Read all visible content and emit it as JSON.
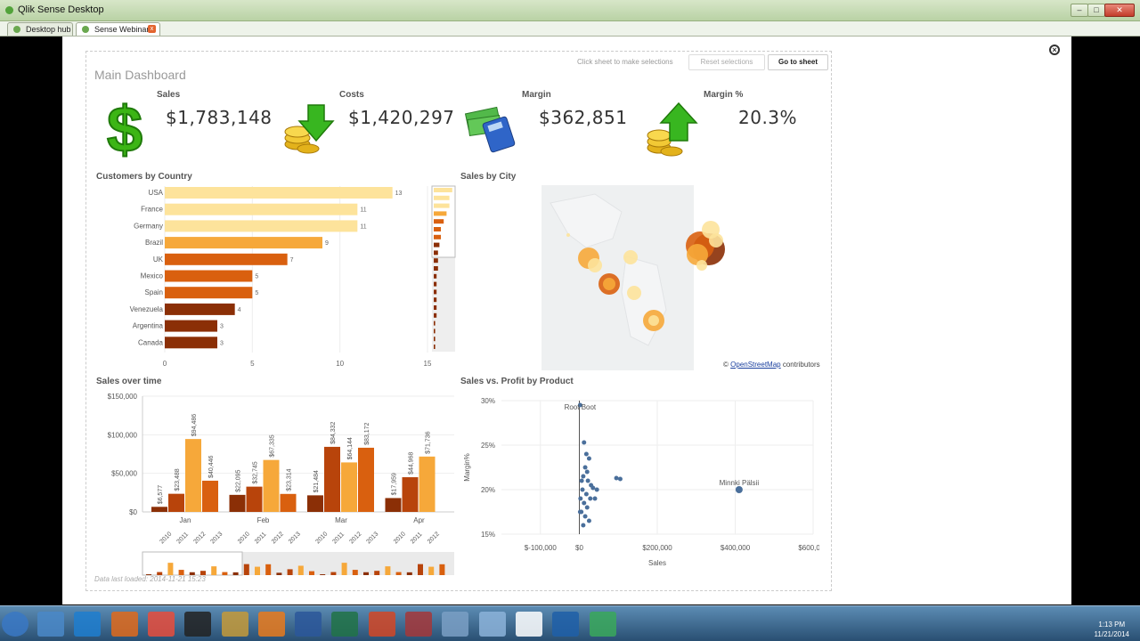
{
  "window": {
    "title": "Qlik Sense Desktop",
    "minimize_icon": "minimize-icon",
    "maximize_icon": "maximize-icon",
    "close_icon": "close-icon"
  },
  "tabs": [
    {
      "label": "Desktop hub",
      "icon": "hub-icon"
    },
    {
      "label": "Sense Webinar",
      "icon": "app-icon",
      "close": "x"
    }
  ],
  "sheet": {
    "title": "Main Dashboard",
    "hint": "Click sheet to make selections",
    "reset_label": "Reset selections",
    "goto_label": "Go to sheet",
    "footer": "Data last loaded: 2014-11-21 15:23"
  },
  "kpis": [
    {
      "label": "Sales",
      "value": "$1,783,148",
      "icon": "dollar-sign-icon"
    },
    {
      "label": "Costs",
      "value": "$1,420,297",
      "icon": "coins-down-arrow-icon"
    },
    {
      "label": "Margin",
      "value": "$362,851",
      "icon": "money-calculator-icon"
    },
    {
      "label": "Margin %",
      "value": "20.3%",
      "icon": "coins-up-arrow-icon"
    }
  ],
  "panels": {
    "customers_title": "Customers by Country",
    "city_title": "Sales by City",
    "time_title": "Sales over time",
    "scatter_title": "Sales vs. Profit by Product",
    "map_credit_prefix": "©",
    "map_credit_link": "OpenStreetMap",
    "map_credit_suffix": "contributors"
  },
  "colors": {
    "light": "#fde39b",
    "mid": "#f6a83a",
    "dark": "#d9600f",
    "darkest": "#8b2f06",
    "scatter": "#4a6f9b"
  },
  "chart_data": [
    {
      "type": "bar",
      "orientation": "horizontal",
      "title": "Customers by Country",
      "categories": [
        "USA",
        "France",
        "Germany",
        "Brazil",
        "UK",
        "Mexico",
        "Spain",
        "Venezuela",
        "Argentina",
        "Canada"
      ],
      "values": [
        13,
        11,
        11,
        9,
        7,
        5,
        5,
        4,
        3,
        3
      ],
      "xticks": [
        0,
        5,
        10,
        15
      ],
      "xlim": [
        0,
        15
      ]
    },
    {
      "type": "bar",
      "title": "Sales over time",
      "months": [
        "Jan",
        "Feb",
        "Mar",
        "Apr"
      ],
      "years": [
        "2010",
        "2011",
        "2012",
        "2013"
      ],
      "series": [
        {
          "year": "2010",
          "values": [
            6577,
            22095,
            21484,
            17959
          ]
        },
        {
          "year": "2011",
          "values": [
            23488,
            32745,
            84332,
            44968
          ]
        },
        {
          "year": "2012",
          "values": [
            94486,
            67335,
            64144,
            71736
          ]
        },
        {
          "year": "2013",
          "values": [
            40446,
            23314,
            83172,
            null
          ]
        }
      ],
      "data_labels": [
        [
          "$6,577",
          "$23,488",
          "$94,486",
          "$40,446"
        ],
        [
          "$22,095",
          "$32,745",
          "$67,335",
          "$23,314"
        ],
        [
          "$21,484",
          "$84,332",
          "$64,144",
          "$83,172"
        ],
        [
          "$17,959",
          "$44,968",
          "$71,736",
          ""
        ]
      ],
      "yticks": [
        "$0",
        "$50,000",
        "$100,000",
        "$150,000"
      ],
      "ylim": [
        0,
        150000
      ]
    },
    {
      "type": "scatter",
      "title": "Sales vs. Profit by Product",
      "xlabel": "Sales",
      "ylabel": "Margin%",
      "xticks": [
        "$-100,000",
        "$0",
        "$200,000",
        "$400,000",
        "$600,000"
      ],
      "xlim": [
        -200000,
        600000
      ],
      "yticks": [
        "30%",
        "25%",
        "20%",
        "15%"
      ],
      "ylim": [
        15,
        30
      ],
      "annotations": [
        {
          "label": "Root Boot",
          "x": 2000,
          "y": 28.5
        },
        {
          "label": "Minnki Pälsii",
          "x": 410000,
          "y": 20
        }
      ],
      "points": [
        [
          410000,
          20
        ],
        [
          2000,
          29.5
        ],
        [
          12000,
          25.3
        ],
        [
          18000,
          24
        ],
        [
          25000,
          23.5
        ],
        [
          15000,
          22.5
        ],
        [
          20000,
          22
        ],
        [
          10000,
          21.5
        ],
        [
          22000,
          21
        ],
        [
          30000,
          20.5
        ],
        [
          8000,
          20
        ],
        [
          18000,
          19.5
        ],
        [
          28000,
          19
        ],
        [
          12000,
          18.5
        ],
        [
          20000,
          18
        ],
        [
          5000,
          17.5
        ],
        [
          15000,
          17
        ],
        [
          25000,
          16.5
        ],
        [
          10000,
          16
        ],
        [
          95000,
          21.3
        ],
        [
          105000,
          21.2
        ],
        [
          35000,
          20.2
        ],
        [
          45000,
          20
        ],
        [
          40000,
          19
        ],
        [
          6000,
          21
        ],
        [
          3000,
          19
        ],
        [
          2000,
          17.5
        ]
      ]
    }
  ],
  "taskbar": {
    "icons": [
      "start-orb-icon",
      "control-panel-icon",
      "ie-icon",
      "firefox-icon",
      "chrome-icon",
      "terminal-icon",
      "folder-icon",
      "outlook-icon",
      "word-icon",
      "excel-icon",
      "powerpoint-icon",
      "access-icon",
      "calculator-icon",
      "notepad-icon",
      "signature-icon",
      "qlikview-icon",
      "qlik-sense-icon"
    ],
    "time": "1:13 PM",
    "date": "11/21/2014"
  }
}
